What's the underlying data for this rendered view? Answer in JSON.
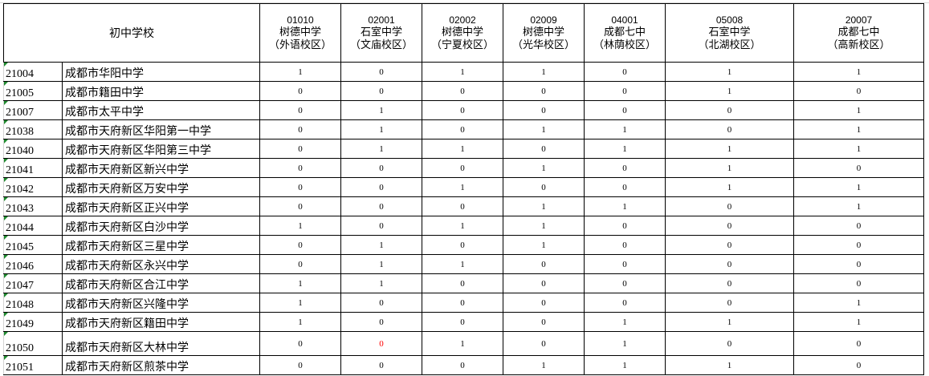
{
  "header": {
    "school_col": "初中学校",
    "columns": [
      {
        "code": "01010",
        "name": "树德中学",
        "campus": "（外语校区）"
      },
      {
        "code": "02001",
        "name": "石室中学",
        "campus": "（文庙校区）"
      },
      {
        "code": "02002",
        "name": "树德中学",
        "campus": "（宁夏校区）"
      },
      {
        "code": "02009",
        "name": "树德中学",
        "campus": "（光华校区）"
      },
      {
        "code": "04001",
        "name": "成都七中",
        "campus": "（林荫校区）"
      },
      {
        "code": "05008",
        "name": "石室中学",
        "campus": "（北湖校区）"
      },
      {
        "code": "20007",
        "name": "成都七中",
        "campus": "（高新校区）"
      }
    ]
  },
  "rows": [
    {
      "id": "21004",
      "name": "成都市华阳中学",
      "v": [
        "1",
        "0",
        "1",
        "1",
        "0",
        "1",
        "1"
      ]
    },
    {
      "id": "21005",
      "name": "成都市籍田中学",
      "v": [
        "0",
        "0",
        "0",
        "0",
        "0",
        "1",
        "0"
      ]
    },
    {
      "id": "21007",
      "name": "成都市太平中学",
      "v": [
        "0",
        "1",
        "0",
        "0",
        "0",
        "0",
        "1"
      ]
    },
    {
      "id": "21038",
      "name": "成都市天府新区华阳第一中学",
      "v": [
        "0",
        "1",
        "0",
        "1",
        "1",
        "0",
        "1"
      ]
    },
    {
      "id": "21040",
      "name": "成都市天府新区华阳第三中学",
      "v": [
        "0",
        "1",
        "1",
        "0",
        "1",
        "1",
        "1"
      ]
    },
    {
      "id": "21041",
      "name": "成都市天府新区新兴中学",
      "v": [
        "0",
        "0",
        "0",
        "1",
        "0",
        "1",
        "0"
      ]
    },
    {
      "id": "21042",
      "name": "成都市天府新区万安中学",
      "v": [
        "0",
        "0",
        "1",
        "0",
        "0",
        "1",
        "1"
      ]
    },
    {
      "id": "21043",
      "name": "成都市天府新区正兴中学",
      "v": [
        "0",
        "0",
        "0",
        "1",
        "1",
        "0",
        "1"
      ]
    },
    {
      "id": "21044",
      "name": "成都市天府新区白沙中学",
      "v": [
        "1",
        "0",
        "1",
        "1",
        "0",
        "0",
        "0"
      ]
    },
    {
      "id": "21045",
      "name": "成都市天府新区三星中学",
      "v": [
        "0",
        "1",
        "0",
        "1",
        "0",
        "0",
        "0"
      ]
    },
    {
      "id": "21046",
      "name": "成都市天府新区永兴中学",
      "v": [
        "0",
        "1",
        "1",
        "0",
        "0",
        "0",
        "0"
      ]
    },
    {
      "id": "21047",
      "name": "成都市天府新区合江中学",
      "v": [
        "1",
        "1",
        "0",
        "0",
        "0",
        "0",
        "0"
      ]
    },
    {
      "id": "21048",
      "name": "成都市天府新区兴隆中学",
      "v": [
        "1",
        "0",
        "0",
        "0",
        "0",
        "0",
        "1"
      ]
    },
    {
      "id": "21049",
      "name": "成都市天府新区籍田中学",
      "v": [
        "1",
        "0",
        "0",
        "0",
        "1",
        "1",
        "1"
      ]
    },
    {
      "id": "21050",
      "name": "成都市天府新区大林中学",
      "v": [
        "0",
        "0",
        "1",
        "0",
        "1",
        "0",
        "0"
      ],
      "highlight_col": 1
    },
    {
      "id": "21051",
      "name": "成都市天府新区煎茶中学",
      "v": [
        "0",
        "0",
        "0",
        "1",
        "1",
        "1",
        "0"
      ]
    }
  ],
  "colors": {
    "highlight": "#ff0000",
    "error_marker": "#1e8a2e"
  }
}
